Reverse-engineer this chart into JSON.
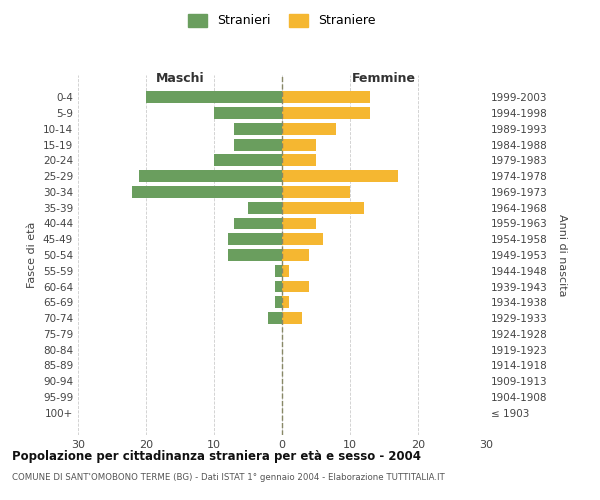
{
  "age_groups": [
    "0-4",
    "5-9",
    "10-14",
    "15-19",
    "20-24",
    "25-29",
    "30-34",
    "35-39",
    "40-44",
    "45-49",
    "50-54",
    "55-59",
    "60-64",
    "65-69",
    "70-74",
    "75-79",
    "80-84",
    "85-89",
    "90-94",
    "95-99",
    "100+"
  ],
  "birth_years": [
    "1999-2003",
    "1994-1998",
    "1989-1993",
    "1984-1988",
    "1979-1983",
    "1974-1978",
    "1969-1973",
    "1964-1968",
    "1959-1963",
    "1954-1958",
    "1949-1953",
    "1944-1948",
    "1939-1943",
    "1934-1938",
    "1929-1933",
    "1924-1928",
    "1919-1923",
    "1914-1918",
    "1909-1913",
    "1904-1908",
    "≤ 1903"
  ],
  "males": [
    20,
    10,
    7,
    7,
    10,
    21,
    22,
    5,
    7,
    8,
    8,
    1,
    1,
    1,
    2,
    0,
    0,
    0,
    0,
    0,
    0
  ],
  "females": [
    13,
    13,
    8,
    5,
    5,
    17,
    10,
    12,
    5,
    6,
    4,
    1,
    4,
    1,
    3,
    0,
    0,
    0,
    0,
    0,
    0
  ],
  "male_color": "#6a9e5e",
  "female_color": "#f5b731",
  "title": "Popolazione per cittadinanza straniera per età e sesso - 2004",
  "subtitle": "COMUNE DI SANT'OMOBONO TERME (BG) - Dati ISTAT 1° gennaio 2004 - Elaborazione TUTTITALIA.IT",
  "legend_male": "Stranieri",
  "legend_female": "Straniere",
  "header_left": "Maschi",
  "header_right": "Femmine",
  "ylabel_left": "Fasce di età",
  "ylabel_right": "Anni di nascita",
  "xlim": 30,
  "bg_color": "#ffffff",
  "grid_color": "#cccccc"
}
